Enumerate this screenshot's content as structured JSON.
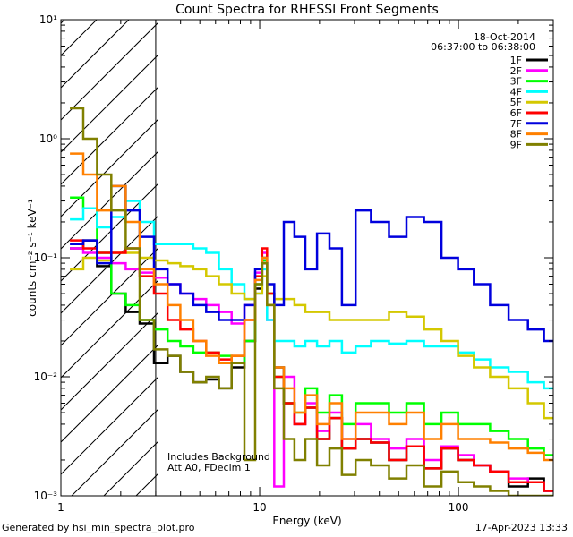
{
  "chart_data": {
    "type": "line",
    "title": "Count Spectra for RHESSI Front Segments",
    "xlabel": "Energy (keV)",
    "ylabel": "counts cm⁻² s⁻¹ keV⁻¹",
    "xscale": "log",
    "yscale": "log",
    "xlim": [
      1,
      300
    ],
    "ylim": [
      0.001,
      10
    ],
    "x_tick_labels": [
      "1",
      "10",
      "100"
    ],
    "y_tick_labels": [
      "10⁻³",
      "10⁻²",
      "10⁻¹",
      "10⁰",
      "10¹"
    ],
    "hatched_region": [
      1,
      3
    ],
    "date": "18-Oct-2014",
    "time_range": "06:37:00 to 06:38:00",
    "annotations": [
      "Includes Background",
      "Att A0, FDecim 1"
    ],
    "footer_left": "Generated by hsi_min_spectra_plot.pro",
    "footer_right": "17-Apr-2023 13:33",
    "legend_position": "top-right",
    "series": [
      {
        "name": "1F",
        "color": "#000000",
        "x": [
          1.2,
          1.4,
          1.65,
          1.95,
          2.3,
          2.7,
          3.2,
          3.7,
          4.3,
          5,
          5.8,
          6.7,
          7.8,
          9,
          10,
          10.6,
          11.2,
          12.5,
          14,
          16,
          18,
          21,
          24,
          28,
          33,
          40,
          50,
          60,
          75,
          90,
          110,
          130,
          160,
          200,
          250,
          290
        ],
        "y": [
          0.12,
          0.14,
          0.085,
          0.05,
          0.035,
          0.028,
          0.013,
          0.015,
          0.011,
          0.009,
          0.0095,
          0.008,
          0.012,
          0.02,
          0.055,
          0.09,
          0.05,
          0.012,
          0.006,
          0.004,
          0.0055,
          0.003,
          0.0045,
          0.0025,
          0.003,
          0.0028,
          0.002,
          0.0026,
          0.0017,
          0.0025,
          0.002,
          0.0018,
          0.0016,
          0.0012,
          0.0014,
          0.0011
        ]
      },
      {
        "name": "2F",
        "color": "#ff00ff",
        "x": [
          1.2,
          1.4,
          1.65,
          1.95,
          2.3,
          2.7,
          3.2,
          3.7,
          4.3,
          5,
          5.8,
          6.7,
          7.8,
          9,
          10,
          10.6,
          11.2,
          12.5,
          14,
          16,
          18,
          21,
          24,
          28,
          33,
          40,
          50,
          60,
          75,
          90,
          110,
          130,
          160,
          200,
          250,
          290
        ],
        "y": [
          0.12,
          0.11,
          0.1,
          0.09,
          0.08,
          0.075,
          0.068,
          0.06,
          0.05,
          0.045,
          0.04,
          0.035,
          0.028,
          0.04,
          0.075,
          0.11,
          0.03,
          0.0012,
          0.01,
          0.004,
          0.006,
          0.0035,
          0.005,
          0.003,
          0.004,
          0.003,
          0.0025,
          0.003,
          0.002,
          0.0026,
          0.0022,
          0.0018,
          0.0016,
          0.0014,
          0.0013,
          0.0011
        ]
      },
      {
        "name": "3F",
        "color": "#00ff00",
        "x": [
          1.2,
          1.4,
          1.65,
          1.95,
          2.3,
          2.7,
          3.2,
          3.7,
          4.3,
          5,
          5.8,
          6.7,
          7.8,
          9,
          10,
          10.6,
          11.2,
          12.5,
          14,
          16,
          18,
          21,
          24,
          28,
          33,
          40,
          50,
          60,
          75,
          90,
          110,
          130,
          160,
          200,
          250,
          290
        ],
        "y": [
          0.32,
          0.26,
          0.11,
          0.05,
          0.04,
          0.03,
          0.025,
          0.02,
          0.018,
          0.016,
          0.016,
          0.015,
          0.013,
          0.02,
          0.06,
          0.095,
          0.05,
          0.01,
          0.006,
          0.005,
          0.008,
          0.005,
          0.007,
          0.004,
          0.006,
          0.006,
          0.005,
          0.006,
          0.004,
          0.005,
          0.004,
          0.004,
          0.0035,
          0.003,
          0.0025,
          0.0022
        ]
      },
      {
        "name": "4F",
        "color": "#00ffff",
        "x": [
          1.2,
          1.4,
          1.65,
          1.95,
          2.3,
          2.7,
          3.2,
          3.7,
          4.3,
          5,
          5.8,
          6.7,
          7.8,
          9,
          10,
          10.6,
          11.2,
          12.5,
          14,
          16,
          18,
          21,
          24,
          28,
          33,
          40,
          50,
          60,
          75,
          90,
          110,
          130,
          160,
          200,
          250,
          290
        ],
        "y": [
          0.21,
          0.26,
          0.18,
          0.22,
          0.3,
          0.2,
          0.13,
          0.13,
          0.13,
          0.12,
          0.11,
          0.08,
          0.06,
          0.045,
          0.05,
          0.08,
          0.03,
          0.02,
          0.02,
          0.018,
          0.02,
          0.018,
          0.02,
          0.016,
          0.018,
          0.02,
          0.019,
          0.02,
          0.018,
          0.018,
          0.016,
          0.014,
          0.012,
          0.011,
          0.009,
          0.008
        ]
      },
      {
        "name": "5F",
        "color": "#d4c800",
        "x": [
          1.2,
          1.4,
          1.65,
          1.95,
          2.3,
          2.7,
          3.2,
          3.7,
          4.3,
          5,
          5.8,
          6.7,
          7.8,
          9,
          10,
          10.6,
          11.2,
          12.5,
          14,
          16,
          18,
          21,
          24,
          28,
          33,
          40,
          50,
          60,
          75,
          90,
          110,
          130,
          160,
          200,
          250,
          290
        ],
        "y": [
          0.08,
          0.1,
          0.095,
          0.11,
          0.11,
          0.1,
          0.095,
          0.09,
          0.085,
          0.08,
          0.07,
          0.06,
          0.05,
          0.045,
          0.05,
          0.07,
          0.05,
          0.045,
          0.045,
          0.04,
          0.035,
          0.035,
          0.03,
          0.03,
          0.03,
          0.03,
          0.035,
          0.032,
          0.025,
          0.02,
          0.015,
          0.012,
          0.01,
          0.008,
          0.006,
          0.0045
        ]
      },
      {
        "name": "6F",
        "color": "#ff0000",
        "x": [
          1.2,
          1.4,
          1.65,
          1.95,
          2.3,
          2.7,
          3.2,
          3.7,
          4.3,
          5,
          5.8,
          6.7,
          7.8,
          9,
          10,
          10.6,
          11.2,
          12.5,
          14,
          16,
          18,
          21,
          24,
          28,
          33,
          40,
          50,
          60,
          75,
          90,
          110,
          130,
          160,
          200,
          250,
          290
        ],
        "y": [
          0.14,
          0.12,
          0.11,
          0.11,
          0.12,
          0.07,
          0.05,
          0.03,
          0.025,
          0.02,
          0.016,
          0.014,
          0.015,
          0.03,
          0.07,
          0.12,
          0.05,
          0.01,
          0.006,
          0.004,
          0.0055,
          0.003,
          0.0045,
          0.0025,
          0.003,
          0.0028,
          0.002,
          0.0026,
          0.0017,
          0.0025,
          0.002,
          0.0018,
          0.0016,
          0.0013,
          0.0013,
          0.0011
        ]
      },
      {
        "name": "7F",
        "color": "#0000dd",
        "x": [
          1.2,
          1.4,
          1.65,
          1.95,
          2.3,
          2.7,
          3.2,
          3.7,
          4.3,
          5,
          5.8,
          6.7,
          7.8,
          9,
          10,
          10.6,
          11.2,
          12.5,
          14,
          16,
          18,
          21,
          24,
          28,
          33,
          40,
          50,
          60,
          75,
          90,
          110,
          130,
          160,
          200,
          250,
          290
        ],
        "y": [
          0.13,
          0.14,
          0.09,
          0.4,
          0.25,
          0.15,
          0.08,
          0.06,
          0.05,
          0.04,
          0.035,
          0.03,
          0.03,
          0.04,
          0.08,
          0.1,
          0.06,
          0.04,
          0.2,
          0.15,
          0.08,
          0.16,
          0.12,
          0.04,
          0.25,
          0.2,
          0.15,
          0.22,
          0.2,
          0.1,
          0.08,
          0.06,
          0.04,
          0.03,
          0.025,
          0.02
        ]
      },
      {
        "name": "8F",
        "color": "#ff8000",
        "x": [
          1.2,
          1.4,
          1.65,
          1.95,
          2.3,
          2.7,
          3.2,
          3.7,
          4.3,
          5,
          5.8,
          6.7,
          7.8,
          9,
          10,
          10.6,
          11.2,
          12.5,
          14,
          16,
          18,
          21,
          24,
          28,
          33,
          40,
          50,
          60,
          75,
          90,
          110,
          130,
          160,
          200,
          250,
          290
        ],
        "y": [
          0.75,
          0.5,
          0.25,
          0.4,
          0.2,
          0.08,
          0.06,
          0.04,
          0.03,
          0.02,
          0.015,
          0.013,
          0.015,
          0.03,
          0.065,
          0.1,
          0.04,
          0.012,
          0.008,
          0.005,
          0.007,
          0.004,
          0.006,
          0.003,
          0.005,
          0.005,
          0.004,
          0.005,
          0.003,
          0.004,
          0.003,
          0.003,
          0.0028,
          0.0025,
          0.0023,
          0.002
        ]
      },
      {
        "name": "9F",
        "color": "#808000",
        "x": [
          1.2,
          1.4,
          1.65,
          1.95,
          2.3,
          2.7,
          3.2,
          3.7,
          4.3,
          5,
          5.8,
          6.7,
          7.8,
          9,
          10,
          10.6,
          11.2,
          12.5,
          14,
          16,
          18,
          21,
          24,
          28,
          33,
          40,
          50,
          60,
          75,
          90,
          110,
          130,
          160,
          200,
          250,
          290
        ],
        "y": [
          1.8,
          1.0,
          0.5,
          0.25,
          0.12,
          0.03,
          0.017,
          0.015,
          0.011,
          0.009,
          0.01,
          0.008,
          0.013,
          0.002,
          0.06,
          0.09,
          0.04,
          0.008,
          0.003,
          0.002,
          0.003,
          0.0018,
          0.0025,
          0.0015,
          0.002,
          0.0018,
          0.0014,
          0.0018,
          0.0012,
          0.0016,
          0.0013,
          0.0012,
          0.0011,
          0.001,
          0.001,
          0.001
        ]
      }
    ]
  }
}
